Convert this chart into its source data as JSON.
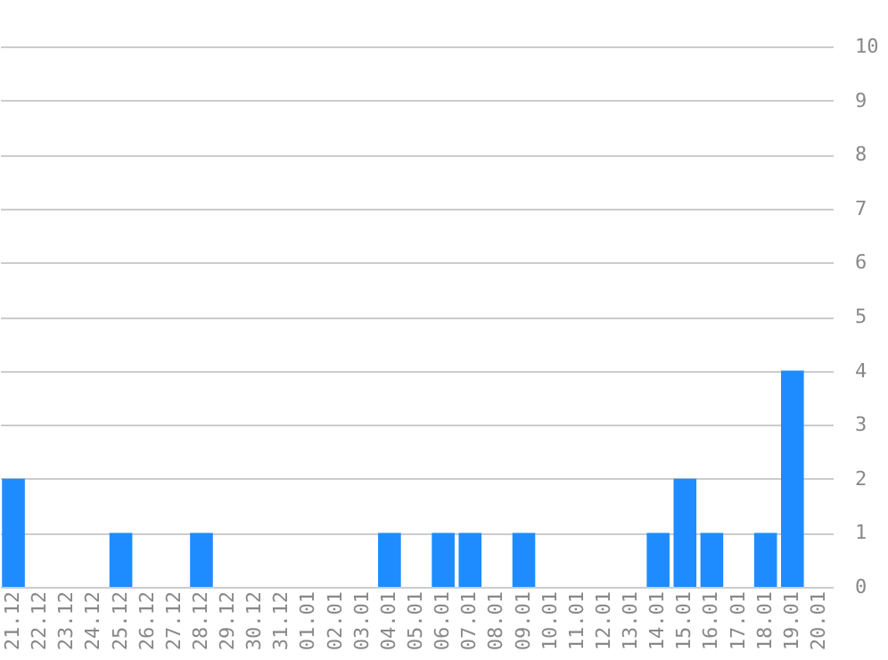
{
  "chart_data": {
    "type": "bar",
    "categories": [
      "21.12",
      "22.12",
      "23.12",
      "24.12",
      "25.12",
      "26.12",
      "27.12",
      "28.12",
      "29.12",
      "30.12",
      "31.12",
      "01.01",
      "02.01",
      "03.01",
      "04.01",
      "05.01",
      "06.01",
      "07.01",
      "08.01",
      "09.01",
      "10.01",
      "11.01",
      "12.01",
      "13.01",
      "14.01",
      "15.01",
      "16.01",
      "17.01",
      "18.01",
      "19.01",
      "20.01"
    ],
    "values": [
      2,
      0,
      0,
      0,
      1,
      0,
      0,
      1,
      0,
      0,
      0,
      0,
      0,
      0,
      1,
      0,
      1,
      1,
      0,
      1,
      0,
      0,
      0,
      0,
      1,
      2,
      1,
      0,
      1,
      4,
      0
    ],
    "color": "#1e8cff",
    "ylim": [
      0,
      10
    ],
    "yticks": [
      0,
      1,
      2,
      3,
      4,
      5,
      6,
      7,
      8,
      9,
      10
    ],
    "grid": "y"
  }
}
